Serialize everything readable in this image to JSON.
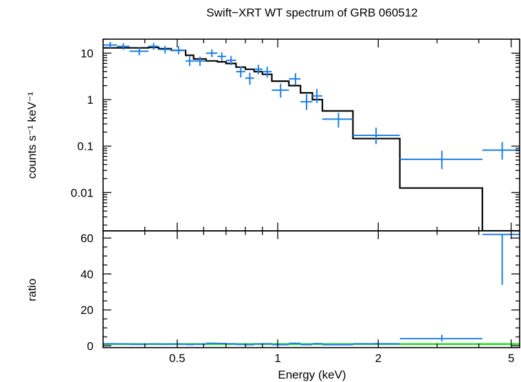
{
  "chart_data": [
    {
      "type": "scatter",
      "panel": "spectrum",
      "title": "Swift−XRT WT spectrum of GRB 060512",
      "xlabel": "Energy (keV)",
      "ylabel": "counts s⁻¹ keV⁻¹",
      "xscale": "log",
      "yscale": "log",
      "xlim": [
        0.3,
        5.3
      ],
      "ylim": [
        0.0015,
        20
      ],
      "x_ticks": [
        "0.5",
        "1",
        "2",
        "5"
      ],
      "y_ticks": [
        "0.01",
        "0.1",
        "1",
        "10"
      ],
      "grid": false,
      "series": [
        {
          "color": "#1a7ee6",
          "points": [
            {
              "x": 0.315,
              "xlo": 0.3,
              "xhi": 0.33,
              "y": 15.0,
              "ylo": 12.8,
              "yhi": 17.5
            },
            {
              "x": 0.345,
              "xlo": 0.33,
              "xhi": 0.36,
              "y": 14.0,
              "ylo": 11.8,
              "yhi": 16.4
            },
            {
              "x": 0.385,
              "xlo": 0.36,
              "xhi": 0.41,
              "y": 11.0,
              "ylo": 9.0,
              "yhi": 13.2
            },
            {
              "x": 0.425,
              "xlo": 0.41,
              "xhi": 0.44,
              "y": 14.0,
              "ylo": 11.8,
              "yhi": 16.6
            },
            {
              "x": 0.46,
              "xlo": 0.44,
              "xhi": 0.48,
              "y": 12.0,
              "ylo": 9.8,
              "yhi": 14.4
            },
            {
              "x": 0.505,
              "xlo": 0.48,
              "xhi": 0.53,
              "y": 11.5,
              "ylo": 9.4,
              "yhi": 14.0
            },
            {
              "x": 0.545,
              "xlo": 0.53,
              "xhi": 0.56,
              "y": 6.8,
              "ylo": 5.3,
              "yhi": 8.4
            },
            {
              "x": 0.585,
              "xlo": 0.56,
              "xhi": 0.61,
              "y": 6.8,
              "ylo": 5.3,
              "yhi": 8.4
            },
            {
              "x": 0.635,
              "xlo": 0.61,
              "xhi": 0.66,
              "y": 10.0,
              "ylo": 8.2,
              "yhi": 12.0
            },
            {
              "x": 0.68,
              "xlo": 0.66,
              "xhi": 0.7,
              "y": 8.5,
              "ylo": 6.8,
              "yhi": 10.4
            },
            {
              "x": 0.725,
              "xlo": 0.7,
              "xhi": 0.75,
              "y": 7.0,
              "ylo": 5.5,
              "yhi": 8.7
            },
            {
              "x": 0.775,
              "xlo": 0.75,
              "xhi": 0.8,
              "y": 4.0,
              "ylo": 3.0,
              "yhi": 5.2
            },
            {
              "x": 0.825,
              "xlo": 0.8,
              "xhi": 0.85,
              "y": 2.9,
              "ylo": 2.1,
              "yhi": 3.8
            },
            {
              "x": 0.875,
              "xlo": 0.85,
              "xhi": 0.9,
              "y": 4.5,
              "ylo": 3.5,
              "yhi": 5.6
            },
            {
              "x": 0.93,
              "xlo": 0.9,
              "xhi": 0.96,
              "y": 4.0,
              "ylo": 3.0,
              "yhi": 5.1
            },
            {
              "x": 1.02,
              "xlo": 0.96,
              "xhi": 1.08,
              "y": 1.6,
              "ylo": 1.1,
              "yhi": 2.2
            },
            {
              "x": 1.13,
              "xlo": 1.08,
              "xhi": 1.17,
              "y": 2.8,
              "ylo": 2.1,
              "yhi": 3.7
            },
            {
              "x": 1.22,
              "xlo": 1.17,
              "xhi": 1.27,
              "y": 0.9,
              "ylo": 0.6,
              "yhi": 1.3
            },
            {
              "x": 1.31,
              "xlo": 1.27,
              "xhi": 1.36,
              "y": 1.2,
              "ylo": 0.85,
              "yhi": 1.7
            },
            {
              "x": 1.52,
              "xlo": 1.36,
              "xhi": 1.68,
              "y": 0.38,
              "ylo": 0.25,
              "yhi": 0.52
            },
            {
              "x": 1.97,
              "xlo": 1.68,
              "xhi": 2.32,
              "y": 0.17,
              "ylo": 0.11,
              "yhi": 0.25
            },
            {
              "x": 3.1,
              "xlo": 2.32,
              "xhi": 4.1,
              "y": 0.052,
              "ylo": 0.032,
              "yhi": 0.08
            },
            {
              "x": 4.7,
              "xlo": 4.1,
              "xhi": 5.3,
              "y": 0.082,
              "ylo": 0.051,
              "yhi": 0.122
            }
          ]
        },
        {
          "color": "#000000",
          "model_steps": [
            {
              "xlo": 0.3,
              "xhi": 0.36,
              "y": 13.0
            },
            {
              "xlo": 0.36,
              "xhi": 0.41,
              "y": 13.0
            },
            {
              "xlo": 0.41,
              "xhi": 0.44,
              "y": 13.3
            },
            {
              "xlo": 0.44,
              "xhi": 0.48,
              "y": 12.5
            },
            {
              "xlo": 0.48,
              "xhi": 0.53,
              "y": 11.5
            },
            {
              "xlo": 0.53,
              "xhi": 0.56,
              "y": 9.0
            },
            {
              "xlo": 0.56,
              "xhi": 0.61,
              "y": 7.5
            },
            {
              "xlo": 0.61,
              "xhi": 0.66,
              "y": 6.8
            },
            {
              "xlo": 0.66,
              "xhi": 0.7,
              "y": 6.5
            },
            {
              "xlo": 0.7,
              "xhi": 0.75,
              "y": 6.0
            },
            {
              "xlo": 0.75,
              "xhi": 0.8,
              "y": 5.0
            },
            {
              "xlo": 0.8,
              "xhi": 0.85,
              "y": 4.5
            },
            {
              "xlo": 0.85,
              "xhi": 0.9,
              "y": 4.0
            },
            {
              "xlo": 0.9,
              "xhi": 0.96,
              "y": 3.5
            },
            {
              "xlo": 0.96,
              "xhi": 1.08,
              "y": 2.5
            },
            {
              "xlo": 1.08,
              "xhi": 1.17,
              "y": 2.0
            },
            {
              "xlo": 1.17,
              "xhi": 1.27,
              "y": 1.4
            },
            {
              "xlo": 1.27,
              "xhi": 1.36,
              "y": 1.0
            },
            {
              "xlo": 1.36,
              "xhi": 1.68,
              "y": 0.57
            },
            {
              "xlo": 1.68,
              "xhi": 2.32,
              "y": 0.145
            },
            {
              "xlo": 2.32,
              "xhi": 4.1,
              "y": 0.0125
            },
            {
              "xlo": 4.1,
              "xhi": 5.3,
              "y": 0.0015
            }
          ]
        }
      ]
    },
    {
      "type": "scatter",
      "panel": "ratio",
      "xlabel": "Energy (keV)",
      "ylabel": "ratio",
      "xscale": "log",
      "yscale": "linear",
      "xlim": [
        0.3,
        5.3
      ],
      "ylim": [
        -1,
        64
      ],
      "x_ticks": [
        "0.5",
        "1",
        "2",
        "5"
      ],
      "y_ticks": [
        "0",
        "20",
        "40",
        "60"
      ],
      "grid": false,
      "reference_line": {
        "y": 1,
        "color": "#22dd22"
      },
      "series": [
        {
          "color": "#1a7ee6",
          "points": [
            {
              "x": 0.315,
              "xlo": 0.3,
              "xhi": 0.33,
              "y": 1.15,
              "ylo": 0.95,
              "yhi": 1.35
            },
            {
              "x": 0.345,
              "xlo": 0.33,
              "xhi": 0.36,
              "y": 1.08,
              "ylo": 0.9,
              "yhi": 1.26
            },
            {
              "x": 0.385,
              "xlo": 0.36,
              "xhi": 0.41,
              "y": 0.85,
              "ylo": 0.7,
              "yhi": 1.0
            },
            {
              "x": 0.425,
              "xlo": 0.41,
              "xhi": 0.44,
              "y": 1.05,
              "ylo": 0.88,
              "yhi": 1.22
            },
            {
              "x": 0.46,
              "xlo": 0.44,
              "xhi": 0.48,
              "y": 0.96,
              "ylo": 0.78,
              "yhi": 1.14
            },
            {
              "x": 0.505,
              "xlo": 0.48,
              "xhi": 0.53,
              "y": 1.0,
              "ylo": 0.82,
              "yhi": 1.18
            },
            {
              "x": 0.545,
              "xlo": 0.53,
              "xhi": 0.56,
              "y": 0.75,
              "ylo": 0.58,
              "yhi": 0.92
            },
            {
              "x": 0.585,
              "xlo": 0.56,
              "xhi": 0.61,
              "y": 0.9,
              "ylo": 0.7,
              "yhi": 1.1
            },
            {
              "x": 0.635,
              "xlo": 0.61,
              "xhi": 0.66,
              "y": 1.45,
              "ylo": 1.2,
              "yhi": 1.7
            },
            {
              "x": 0.68,
              "xlo": 0.66,
              "xhi": 0.7,
              "y": 1.3,
              "ylo": 1.05,
              "yhi": 1.55
            },
            {
              "x": 0.725,
              "xlo": 0.7,
              "xhi": 0.75,
              "y": 1.15,
              "ylo": 0.9,
              "yhi": 1.4
            },
            {
              "x": 0.775,
              "xlo": 0.75,
              "xhi": 0.8,
              "y": 0.8,
              "ylo": 0.6,
              "yhi": 1.0
            },
            {
              "x": 0.825,
              "xlo": 0.8,
              "xhi": 0.85,
              "y": 0.65,
              "ylo": 0.47,
              "yhi": 0.83
            },
            {
              "x": 0.875,
              "xlo": 0.85,
              "xhi": 0.9,
              "y": 1.1,
              "ylo": 0.85,
              "yhi": 1.35
            },
            {
              "x": 0.93,
              "xlo": 0.9,
              "xhi": 0.96,
              "y": 1.15,
              "ylo": 0.88,
              "yhi": 1.42
            },
            {
              "x": 1.02,
              "xlo": 0.96,
              "xhi": 1.08,
              "y": 0.65,
              "ylo": 0.45,
              "yhi": 0.85
            },
            {
              "x": 1.13,
              "xlo": 1.08,
              "xhi": 1.17,
              "y": 1.4,
              "ylo": 1.05,
              "yhi": 1.8
            },
            {
              "x": 1.22,
              "xlo": 1.17,
              "xhi": 1.27,
              "y": 0.65,
              "ylo": 0.43,
              "yhi": 0.92
            },
            {
              "x": 1.31,
              "xlo": 1.27,
              "xhi": 1.36,
              "y": 1.2,
              "ylo": 0.85,
              "yhi": 1.7
            },
            {
              "x": 1.52,
              "xlo": 1.36,
              "xhi": 1.68,
              "y": 0.67,
              "ylo": 0.45,
              "yhi": 0.9
            },
            {
              "x": 1.97,
              "xlo": 1.68,
              "xhi": 2.32,
              "y": 1.15,
              "ylo": 0.75,
              "yhi": 1.7
            },
            {
              "x": 3.1,
              "xlo": 2.32,
              "xhi": 4.1,
              "y": 4.0,
              "ylo": 2.5,
              "yhi": 6.2
            },
            {
              "x": 4.7,
              "xlo": 4.1,
              "xhi": 5.3,
              "y": 62.0,
              "ylo": 34.0,
              "yhi": 62.0
            }
          ]
        }
      ]
    }
  ]
}
